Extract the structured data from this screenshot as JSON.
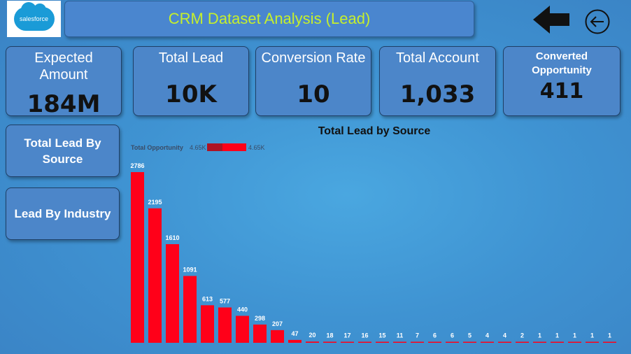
{
  "header": {
    "logo_text": "salesforce",
    "title": "CRM Dataset Analysis (Lead)"
  },
  "kpis": [
    {
      "label": "Expected Amount",
      "value": "184M"
    },
    {
      "label": "Total Lead",
      "value": "10K"
    },
    {
      "label": "Conversion Rate",
      "value": "10"
    },
    {
      "label": "Total Account",
      "value": "1,033"
    },
    {
      "label": "Converted Opportunity",
      "value": "411"
    }
  ],
  "nav": {
    "total_lead_by_source": "Total Lead By Source",
    "lead_by_industry": "Lead By Industry"
  },
  "colors": {
    "bar": "#ff0019",
    "title_text": "#c6ef2c",
    "panel": "#4c86c9"
  },
  "chart_data": {
    "type": "bar",
    "title": "Total Lead by Source",
    "legend": {
      "label": "Total Opportunity",
      "min_label": "4.65K",
      "max_label": "4.65K"
    },
    "values": [
      2786,
      2195,
      1610,
      1091,
      613,
      577,
      440,
      298,
      207,
      47,
      20,
      18,
      17,
      16,
      15,
      11,
      7,
      6,
      6,
      5,
      4,
      4,
      2,
      1,
      1,
      1,
      1,
      1
    ],
    "ylim": [
      0,
      2786
    ]
  }
}
